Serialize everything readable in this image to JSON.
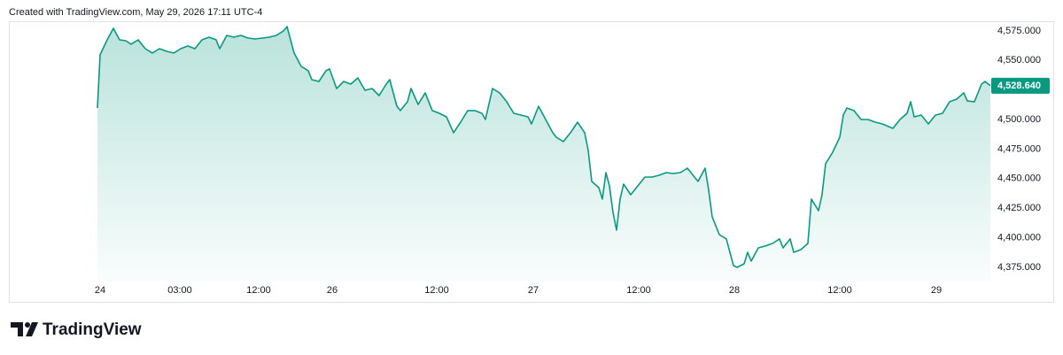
{
  "brand": "TradingView",
  "chart_data": {
    "type": "area",
    "title": "Created with TradingView.com, May 29, 2026 17:11 UTC-4",
    "color": "#089981",
    "x": [
      0,
      3,
      11,
      18,
      25,
      32,
      38,
      46,
      54,
      62,
      70,
      78,
      86,
      94,
      102,
      110,
      118,
      126,
      134,
      138,
      146,
      154,
      162,
      170,
      178,
      186,
      194,
      202,
      210,
      214,
      222,
      230,
      238,
      242,
      250,
      258,
      262,
      270,
      278,
      286,
      294,
      302,
      310,
      318,
      326,
      330,
      338,
      342,
      350,
      354,
      362,
      370,
      378,
      386,
      394,
      402,
      410,
      418,
      426,
      434,
      438,
      446,
      454,
      462,
      470,
      478,
      486,
      490,
      498,
      506,
      514,
      518,
      526,
      534,
      542,
      550,
      554,
      558,
      566,
      570,
      574,
      578,
      582,
      586,
      590,
      594,
      602,
      610,
      618,
      626,
      634,
      642,
      650,
      658,
      666,
      674,
      678,
      686,
      690,
      694,
      702,
      710,
      714,
      718,
      722,
      730,
      734,
      738,
      746,
      754,
      762,
      770,
      774,
      782,
      786,
      794,
      802,
      806,
      814,
      818,
      822,
      830,
      838,
      842,
      846,
      854,
      862,
      870,
      878,
      886,
      898,
      906,
      914,
      918,
      922,
      930,
      938,
      946,
      954,
      962,
      970,
      978,
      982,
      990,
      998,
      1002,
      1008
    ],
    "values": [
      4509.8,
      4554.8,
      4567.5,
      4577.2,
      4567.5,
      4566.7,
      4563.8,
      4567.5,
      4560.0,
      4556.3,
      4560.0,
      4557.8,
      4556.3,
      4560.0,
      4562.3,
      4560.0,
      4567.5,
      4569.7,
      4567.5,
      4560.0,
      4571.2,
      4569.7,
      4571.2,
      4569.0,
      4568.2,
      4569.0,
      4569.7,
      4571.2,
      4575.0,
      4578.7,
      4556.3,
      4545.0,
      4541.3,
      4533.8,
      4532.3,
      4541.3,
      4542.8,
      4526.3,
      4532.3,
      4530.0,
      4535.3,
      4524.8,
      4526.3,
      4520.3,
      4530.0,
      4533.8,
      4511.3,
      4507.6,
      4515.1,
      4526.3,
      4512.8,
      4522.6,
      4507.6,
      4505.3,
      4502.3,
      4488.9,
      4497.8,
      4507.6,
      4507.6,
      4505.3,
      4500.1,
      4526.3,
      4522.6,
      4515.1,
      4505.3,
      4503.8,
      4502.3,
      4496.3,
      4511.3,
      4500.1,
      4488.9,
      4485.1,
      4481.4,
      4488.9,
      4497.8,
      4488.9,
      4473.9,
      4447.7,
      4442.4,
      4432.7,
      4455.1,
      4443.9,
      4421.4,
      4406.5,
      4432.7,
      4445.4,
      4436.4,
      4443.9,
      4451.4,
      4451.4,
      4452.9,
      4455.1,
      4454.4,
      4455.1,
      4458.9,
      4451.4,
      4447.7,
      4458.9,
      4440.2,
      4417.7,
      4402.7,
      4399.0,
      4387.7,
      4376.5,
      4375.0,
      4378.0,
      4387.7,
      4380.2,
      4391.5,
      4393.0,
      4395.2,
      4399.0,
      4391.5,
      4399.0,
      4387.7,
      4390.0,
      4395.2,
      4432.7,
      4422.9,
      4436.4,
      4462.6,
      4472.4,
      4485.1,
      4503.8,
      4509.8,
      4507.6,
      4500.1,
      4500.1,
      4497.8,
      4496.3,
      4492.6,
      4500.1,
      4505.3,
      4515.1,
      4502.3,
      4503.8,
      4496.3,
      4503.8,
      4505.3,
      4515.1,
      4517.3,
      4522.6,
      4515.8,
      4515.1,
      4530.0,
      4532.3,
      4528.64
    ],
    "last_value": 4528.64,
    "last_value_label": "4,528.640",
    "xlim": [
      -100,
      1008
    ],
    "ylim": [
      4364.5,
      4583.2
    ],
    "xticks": [
      {
        "value": 3,
        "label": "24"
      },
      {
        "value": 93,
        "label": "03:00"
      },
      {
        "value": 182,
        "label": "12:00"
      },
      {
        "value": 265,
        "label": "26"
      },
      {
        "value": 383,
        "label": "12:00"
      },
      {
        "value": 492,
        "label": "27"
      },
      {
        "value": 611,
        "label": "12:00"
      },
      {
        "value": 719,
        "label": "28"
      },
      {
        "value": 838,
        "label": "12:00"
      },
      {
        "value": 947,
        "label": "29"
      }
    ],
    "yticks": [
      {
        "value": 4375,
        "label": "4,375.000"
      },
      {
        "value": 4400,
        "label": "4,400.000"
      },
      {
        "value": 4425,
        "label": "4,425.000"
      },
      {
        "value": 4450,
        "label": "4,450.000"
      },
      {
        "value": 4475,
        "label": "4,475.000"
      },
      {
        "value": 4500,
        "label": "4,500.000"
      },
      {
        "value": 4525,
        "label": "4,525.000"
      },
      {
        "value": 4550,
        "label": "4,550.000"
      },
      {
        "value": 4575,
        "label": "4,575.000"
      }
    ]
  }
}
